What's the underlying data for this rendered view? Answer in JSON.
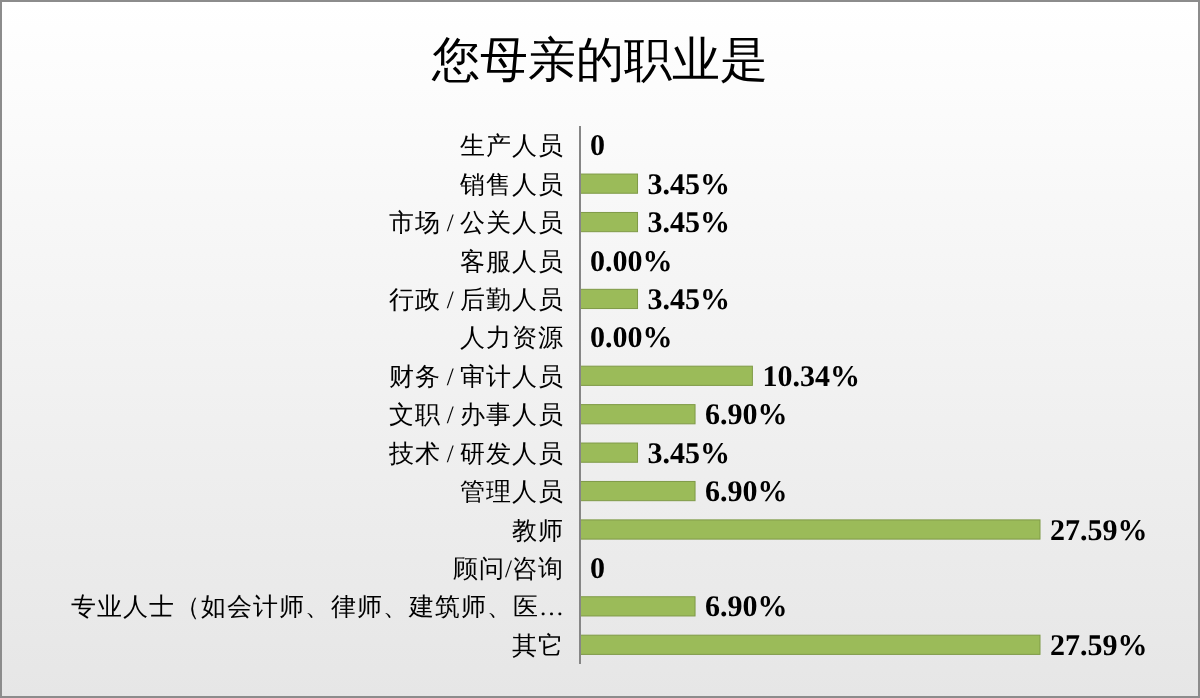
{
  "chart_data": {
    "type": "bar",
    "orientation": "horizontal",
    "title": "您母亲的职业是",
    "categories": [
      "生产人员",
      "销售人员",
      "市场 / 公关人员",
      "客服人员",
      "行政 / 后勤人员",
      "人力资源",
      "财务 / 审计人员",
      "文职 / 办事人员",
      "技术 / 研发人员",
      "管理人员",
      "教师",
      "顾问/咨询",
      "专业人士（如会计师、律师、建筑师、医…",
      "其它"
    ],
    "values": [
      0,
      3.45,
      3.45,
      0,
      3.45,
      0,
      10.34,
      6.9,
      3.45,
      6.9,
      27.59,
      0,
      6.9,
      27.59
    ],
    "value_labels": [
      "0",
      "3.45%",
      "3.45%",
      "0.00%",
      "3.45%",
      "0.00%",
      "10.34%",
      "6.90%",
      "3.45%",
      "6.90%",
      "27.59%",
      "0",
      "6.90%",
      "27.59%"
    ],
    "color": "#9bbb59"
  }
}
